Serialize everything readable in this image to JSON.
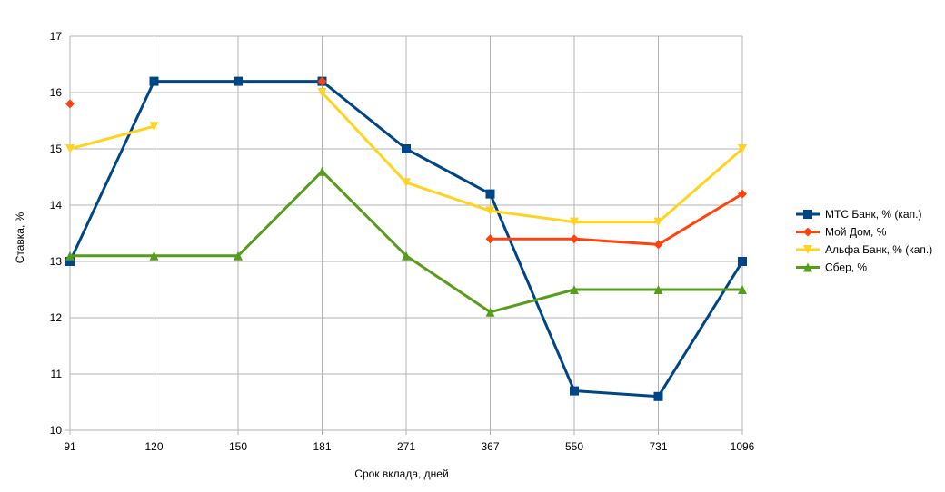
{
  "chart_data": {
    "type": "line",
    "title": "",
    "xlabel": "Срок вклада, дней",
    "ylabel": "Ставка, %",
    "categories": [
      "91",
      "120",
      "150",
      "181",
      "271",
      "367",
      "550",
      "731",
      "1096"
    ],
    "ylim": [
      10,
      17
    ],
    "yticks": [
      "10",
      "11",
      "12",
      "13",
      "14",
      "15",
      "16",
      "17"
    ],
    "grid": "horizontal and vertical",
    "legend_position": "right",
    "series": [
      {
        "name": "МТС Банк, % (кап.)",
        "marker": "square",
        "color": "#004586",
        "values": [
          13.0,
          16.2,
          16.2,
          16.2,
          15.0,
          14.2,
          10.7,
          10.6,
          13.0
        ]
      },
      {
        "name": "Мой Дом, %",
        "marker": "diamond",
        "color": "#ff420e",
        "values": [
          15.8,
          null,
          null,
          16.2,
          null,
          13.4,
          13.4,
          13.3,
          14.2
        ]
      },
      {
        "name": "Альфа Банк, % (кап.)",
        "marker": "triangle-down",
        "color": "#ffd320",
        "values": [
          15.0,
          15.4,
          null,
          16.0,
          14.4,
          13.9,
          13.7,
          13.7,
          15.0
        ]
      },
      {
        "name": "Сбер, %",
        "marker": "triangle-up",
        "color": "#579d1c",
        "values": [
          13.1,
          13.1,
          13.1,
          14.6,
          13.1,
          12.1,
          12.5,
          12.5,
          12.5
        ]
      }
    ]
  }
}
